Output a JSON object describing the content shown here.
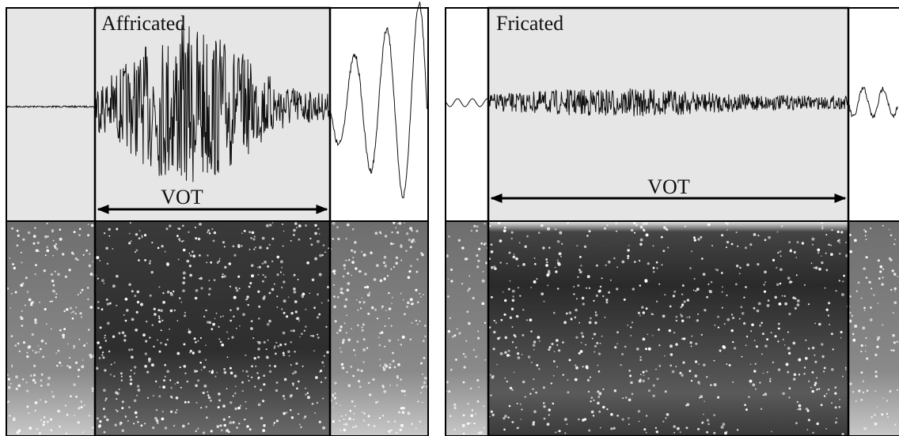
{
  "panels": [
    {
      "label": "Affricated",
      "annotation": "VOT"
    },
    {
      "label": "Fricated",
      "annotation": "VOT"
    }
  ]
}
